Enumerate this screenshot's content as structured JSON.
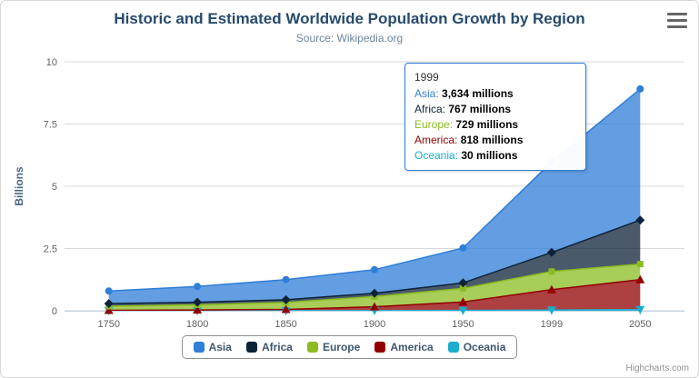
{
  "credit": "Highcharts.com",
  "icons": {
    "export_menu": "hamburger-menu"
  },
  "chart_data": {
    "type": "area",
    "stacked": true,
    "title": "Historic and Estimated Worldwide Population Growth by Region",
    "subtitle": "Source: Wikipedia.org",
    "xlabel": "",
    "ylabel": "Billions",
    "ylim": [
      0,
      10
    ],
    "y_ticks": [
      0,
      2.5,
      5,
      7.5,
      10
    ],
    "grid": true,
    "legend_position": "bottom",
    "value_unit": "millions",
    "categories": [
      "1750",
      "1800",
      "1850",
      "1900",
      "1950",
      "1999",
      "2050"
    ],
    "series": [
      {
        "name": "Asia",
        "color": "#2f7ed8",
        "marker": "circle",
        "values": [
          502,
          635,
          809,
          947,
          1402,
          3634,
          5268
        ]
      },
      {
        "name": "Africa",
        "color": "#0d233a",
        "marker": "diamond",
        "values": [
          106,
          107,
          111,
          133,
          221,
          767,
          1766
        ]
      },
      {
        "name": "Europe",
        "color": "#8bbc21",
        "marker": "square",
        "values": [
          163,
          203,
          276,
          408,
          547,
          729,
          628
        ]
      },
      {
        "name": "America",
        "color": "#910000",
        "marker": "triangle",
        "values": [
          18,
          31,
          54,
          156,
          339,
          818,
          1201
        ]
      },
      {
        "name": "Oceania",
        "color": "#1aadce",
        "marker": "triangle-down",
        "values": [
          2,
          2,
          2,
          6,
          13,
          30,
          46
        ]
      }
    ],
    "hover": {
      "series": "Asia",
      "category": "1999"
    }
  },
  "tooltip": {
    "header": "1999",
    "rows": [
      {
        "name": "Asia",
        "value": "3,634 millions"
      },
      {
        "name": "Africa",
        "value": "767 millions"
      },
      {
        "name": "Europe",
        "value": "729 millions"
      },
      {
        "name": "America",
        "value": "818 millions"
      },
      {
        "name": "Oceania",
        "value": "30 millions"
      }
    ]
  }
}
